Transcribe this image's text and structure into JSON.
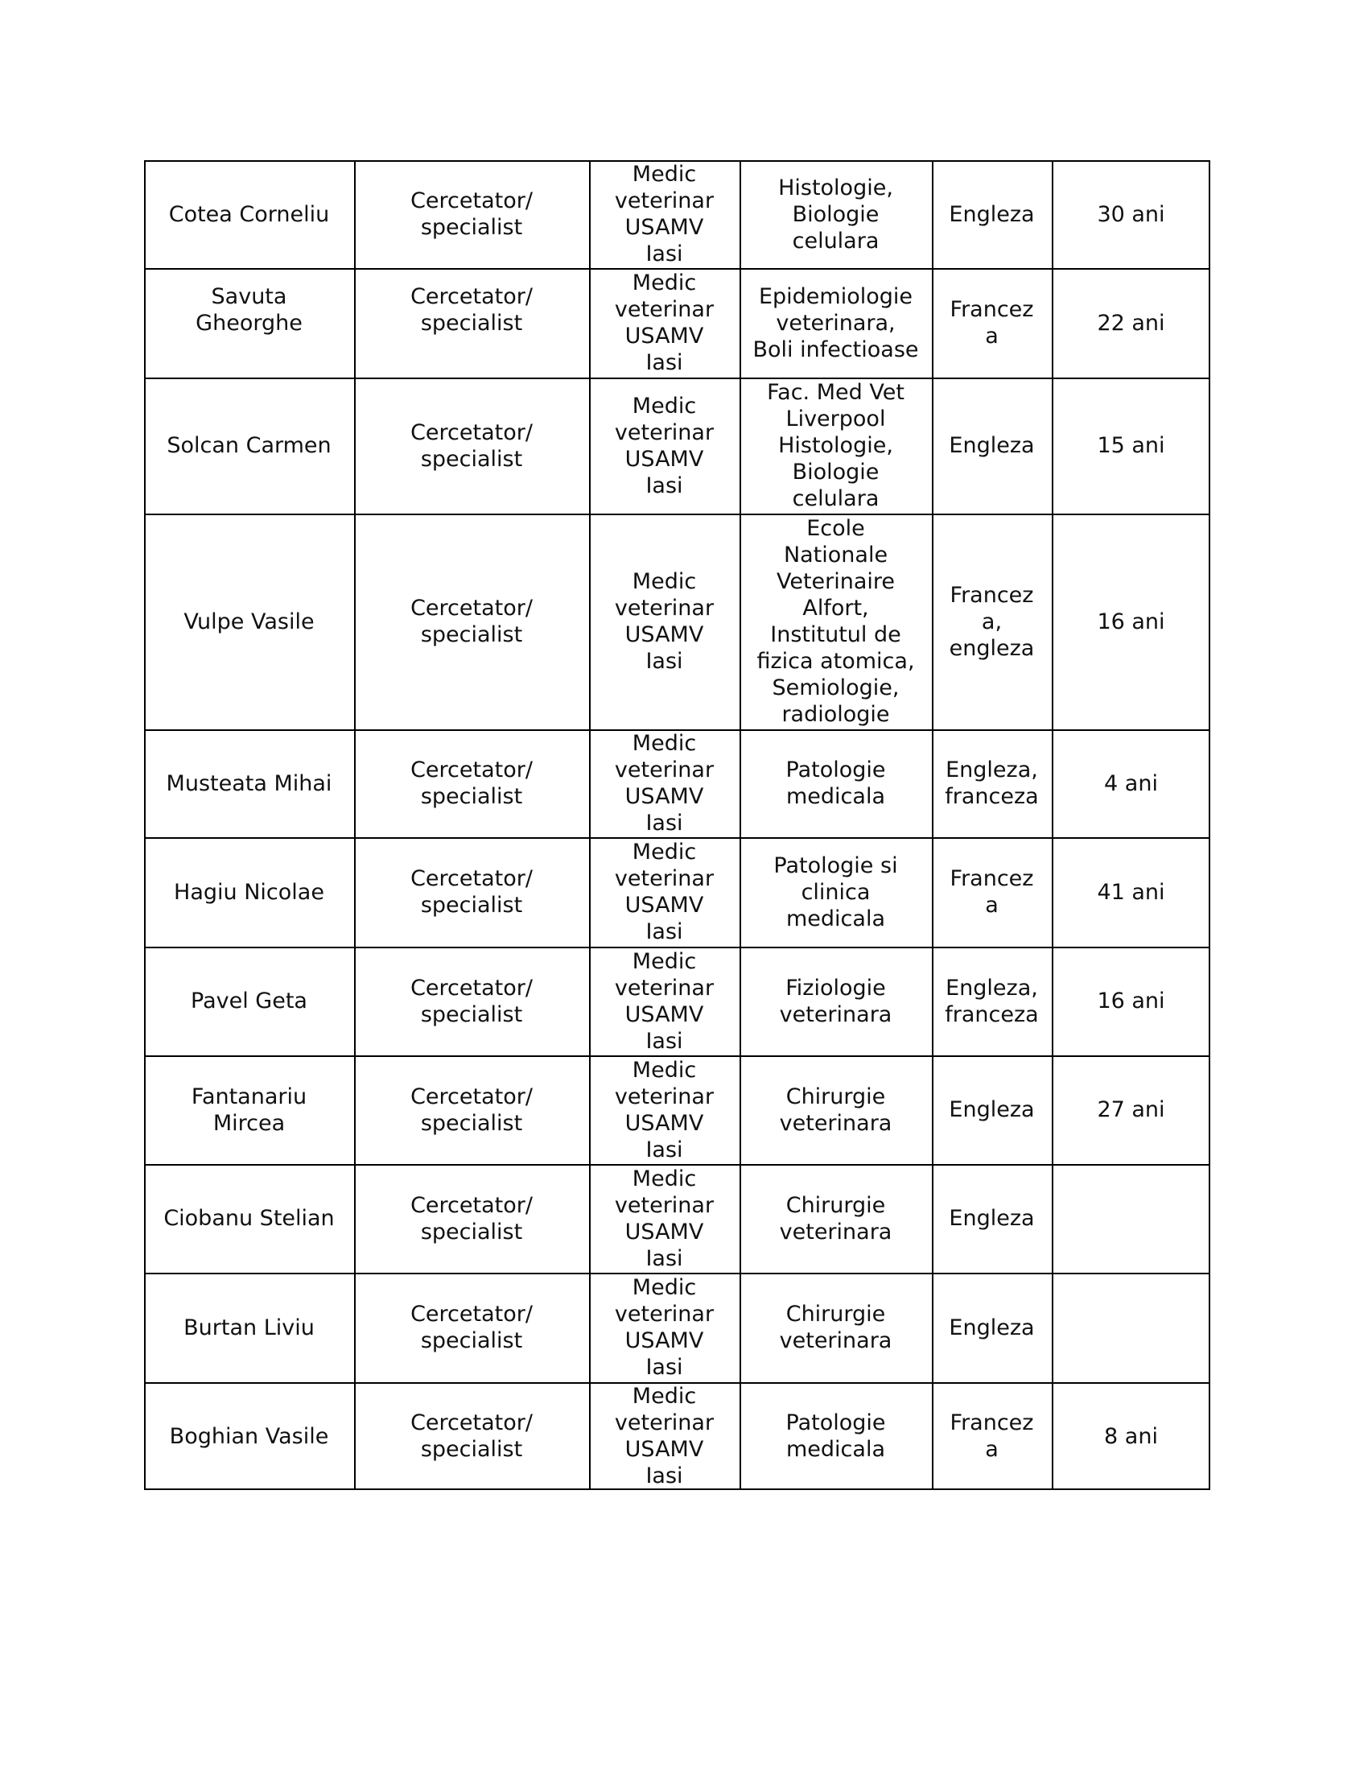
{
  "table": {
    "rows": [
      [
        [
          "Cotea Corneliu"
        ],
        [
          "Cercetator/",
          "specialist"
        ],
        [
          "Medic",
          "veterinar",
          "USAMV",
          "Iasi"
        ],
        [
          "Histologie,",
          "Biologie",
          "celulara"
        ],
        [
          "Engleza"
        ],
        [
          "30 ani"
        ]
      ],
      [
        [
          "Savuta",
          "Gheorghe",
          ""
        ],
        [
          "Cercetator/",
          "specialist",
          ""
        ],
        [
          "Medic",
          "veterinar",
          "USAMV",
          "Iasi"
        ],
        [
          "Epidemiologie",
          "veterinara,",
          "Boli infectioase"
        ],
        [
          "Francez",
          "a"
        ],
        [
          "22 ani"
        ]
      ],
      [
        [
          "Solcan Carmen"
        ],
        [
          "Cercetator/",
          "specialist"
        ],
        [
          "Medic",
          "veterinar",
          "USAMV",
          "Iasi"
        ],
        [
          "Fac. Med Vet",
          "Liverpool",
          "Histologie,",
          "Biologie",
          "celulara"
        ],
        [
          "Engleza"
        ],
        [
          "15 ani"
        ]
      ],
      [
        [
          "Vulpe Vasile"
        ],
        [
          "Cercetator/",
          "specialist"
        ],
        [
          "Medic",
          "veterinar",
          "USAMV",
          "Iasi"
        ],
        [
          "Ecole",
          "Nationale",
          "Veterinaire",
          "Alfort,",
          "Institutul de",
          "fizica atomica,",
          "Semiologie,",
          "radiologie"
        ],
        [
          "Francez",
          "a,",
          "engleza"
        ],
        [
          "16 ani"
        ]
      ],
      [
        [
          "Musteata Mihai"
        ],
        [
          "Cercetator/",
          "specialist"
        ],
        [
          "Medic",
          "veterinar",
          "USAMV",
          "Iasi"
        ],
        [
          "Patologie",
          "medicala"
        ],
        [
          "Engleza,",
          "franceza"
        ],
        [
          "4 ani"
        ]
      ],
      [
        [
          "Hagiu Nicolae"
        ],
        [
          "Cercetator/",
          "specialist"
        ],
        [
          "Medic",
          "veterinar",
          "USAMV",
          "Iasi"
        ],
        [
          "Patologie si",
          "clinica",
          "medicala"
        ],
        [
          "Francez",
          "a"
        ],
        [
          "41 ani"
        ]
      ],
      [
        [
          "Pavel Geta"
        ],
        [
          "Cercetator/",
          "specialist"
        ],
        [
          "Medic",
          "veterinar",
          "USAMV",
          "Iasi"
        ],
        [
          "Fiziologie",
          "veterinara"
        ],
        [
          "Engleza,",
          "franceza"
        ],
        [
          "16 ani"
        ]
      ],
      [
        [
          "Fantanariu",
          "Mircea"
        ],
        [
          "Cercetator/",
          "specialist"
        ],
        [
          "Medic",
          "veterinar",
          "USAMV",
          "Iasi"
        ],
        [
          "Chirurgie",
          "veterinara"
        ],
        [
          "Engleza"
        ],
        [
          "27 ani"
        ]
      ],
      [
        [
          "Ciobanu Stelian"
        ],
        [
          "Cercetator/",
          "specialist"
        ],
        [
          "Medic",
          "veterinar",
          "USAMV",
          "Iasi"
        ],
        [
          "Chirurgie",
          "veterinara"
        ],
        [
          "Engleza"
        ],
        [
          ""
        ]
      ],
      [
        [
          "Burtan Liviu"
        ],
        [
          "Cercetator/",
          "specialist"
        ],
        [
          "Medic",
          "veterinar",
          "USAMV",
          "Iasi"
        ],
        [
          "Chirurgie",
          "veterinara"
        ],
        [
          "Engleza"
        ],
        [
          ""
        ]
      ],
      [
        [
          "Boghian Vasile"
        ],
        [
          "Cercetator/",
          "specialist"
        ],
        [
          "Medic",
          "veterinar",
          "USAMV",
          "Iasi"
        ],
        [
          "Patologie",
          "medicala"
        ],
        [
          "Francez",
          "a"
        ],
        [
          "8 ani"
        ]
      ]
    ]
  }
}
